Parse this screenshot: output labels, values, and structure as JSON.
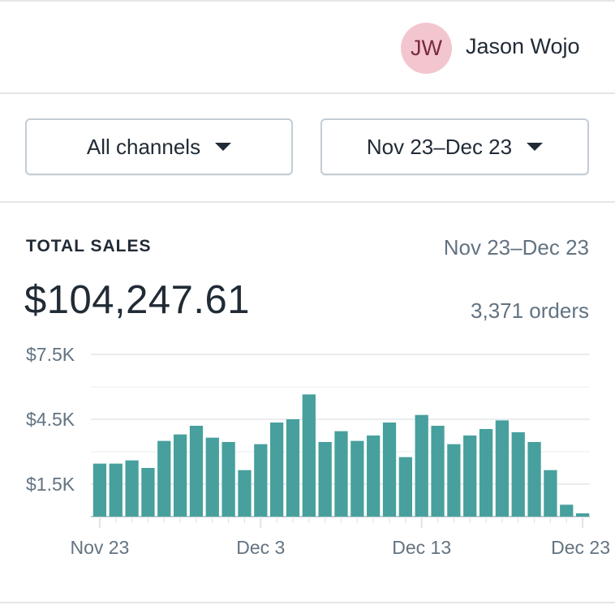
{
  "user": {
    "initials": "JW",
    "name": "Jason Wojo"
  },
  "filters": {
    "channel": "All channels",
    "date_range": "Nov 23–Dec 23"
  },
  "card": {
    "title": "TOTAL SALES",
    "range": "Nov 23–Dec 23",
    "total": "$104,247.61",
    "orders": "3,371 orders"
  },
  "colors": {
    "bar": "#47a09d",
    "avatar_bg": "#f3c6cf",
    "grid": "#e3e5e8"
  },
  "chart_data": {
    "type": "bar",
    "title": "",
    "xlabel": "",
    "ylabel": "",
    "ylim": [
      0,
      7500
    ],
    "yticks": [
      {
        "value": 7500,
        "label": "$7.5K"
      },
      {
        "value": 4500,
        "label": "$4.5K"
      },
      {
        "value": 1500,
        "label": "$1.5K"
      }
    ],
    "grid": true,
    "xtick_labels": [
      {
        "index": 0,
        "label": "Nov 23"
      },
      {
        "index": 10,
        "label": "Dec 3"
      },
      {
        "index": 20,
        "label": "Dec 13"
      },
      {
        "index": 30,
        "label": "Dec 23"
      }
    ],
    "categories": [
      "Nov 23",
      "Nov 24",
      "Nov 25",
      "Nov 26",
      "Nov 27",
      "Nov 28",
      "Nov 29",
      "Nov 30",
      "Dec 1",
      "Dec 2",
      "Dec 3",
      "Dec 4",
      "Dec 5",
      "Dec 6",
      "Dec 7",
      "Dec 8",
      "Dec 9",
      "Dec 10",
      "Dec 11",
      "Dec 12",
      "Dec 13",
      "Dec 14",
      "Dec 15",
      "Dec 16",
      "Dec 17",
      "Dec 18",
      "Dec 19",
      "Dec 20",
      "Dec 21",
      "Dec 22",
      "Dec 23"
    ],
    "values": [
      2450,
      2450,
      2600,
      2250,
      3500,
      3800,
      4200,
      3650,
      3450,
      2150,
      3350,
      4350,
      4500,
      5650,
      3450,
      3950,
      3500,
      3750,
      4350,
      2750,
      4700,
      4200,
      3350,
      3750,
      4050,
      4450,
      3900,
      3450,
      2150,
      550,
      150
    ]
  }
}
